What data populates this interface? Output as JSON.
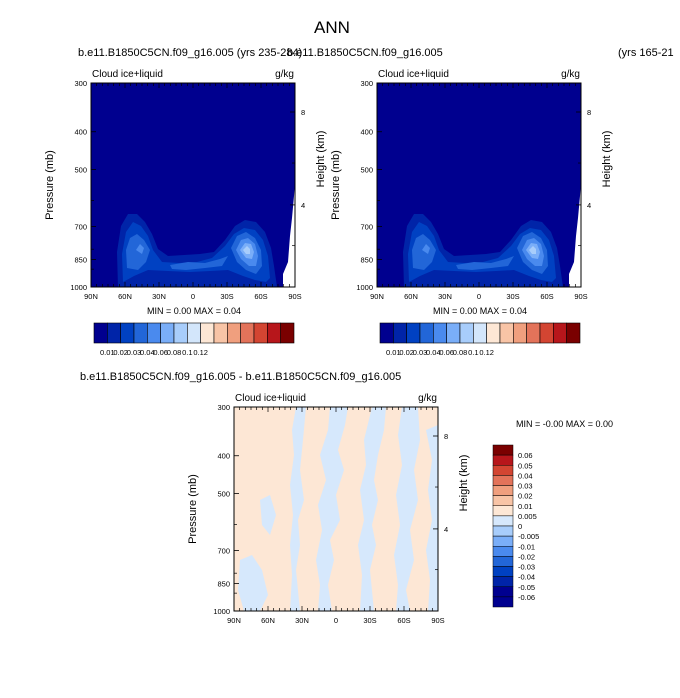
{
  "page": {
    "title": "ANN",
    "left_header": "b.e11.B1850C5CN.f09_g16.005 (yrs 235-284)",
    "middle_header": "b.e11.B1850C5CN.f09_g16.005",
    "right_header": "(yrs 165-21",
    "diff_header": "b.e11.B1850C5CN.f09_g16.005 - b.e11.B1850C5CN.f09_g16.005"
  },
  "colors": {
    "levels": [
      "#00008f",
      "#0024a8",
      "#0041c2",
      "#2266d8",
      "#4a8aee",
      "#7aaef8",
      "#a8cdfb",
      "#d3e6fb",
      "#fde7d5",
      "#f8c4a6",
      "#f09f7e",
      "#e3735a",
      "#d34532",
      "#b7161b",
      "#7a0000"
    ],
    "diff_levels": [
      "#00008f",
      "#0024a8",
      "#0041c2",
      "#2266d8",
      "#4a8aee",
      "#7aaef8",
      "#a8cdfb",
      "#d6e8fc",
      "#fde7d5",
      "#f8c4a6",
      "#f09f7e",
      "#e3735a",
      "#d34532",
      "#b7161b",
      "#7a0000"
    ]
  },
  "panels": [
    {
      "id": "top-left",
      "left_label": "Cloud ice+liquid",
      "right_label": "g/kg",
      "ylabel": "Pressure (mb)",
      "ylabel_right": "Height (km)",
      "stats": "MIN =  0.00   MAX =  0.04"
    },
    {
      "id": "top-right",
      "left_label": "Cloud ice+liquid",
      "right_label": "g/kg",
      "ylabel": "Pressure (mb)",
      "ylabel_right": "Height (km)",
      "stats": "MIN =  0.00   MAX =  0.04"
    },
    {
      "id": "diff",
      "left_label": "Cloud ice+liquid",
      "right_label": "g/kg",
      "ylabel": "Pressure (mb)",
      "ylabel_right": "Height (km)",
      "stats": "MIN =  -0.00   MAX =   0.00"
    }
  ],
  "chart_data": [
    {
      "type": "heatmap",
      "title": "Cloud ice+liquid",
      "units": "g/kg",
      "xlabel": "",
      "ylabel": "Pressure (mb)",
      "ylabel_right": "Height (km)",
      "x_ticks": [
        "90N",
        "60N",
        "30N",
        "0",
        "30S",
        "60S",
        "90S"
      ],
      "y_ticks": [
        "300",
        "400",
        "500",
        "700",
        "850",
        "1000"
      ],
      "y_ticks_right": [
        "8",
        "4"
      ],
      "ylim": [
        1000,
        300
      ],
      "min": 0.0,
      "max": 0.04,
      "colorbar_labels": [
        "0.01",
        "0.02",
        "0.03",
        "0.04",
        "0.06",
        "0.08",
        "0.1",
        "0.12"
      ]
    },
    {
      "type": "heatmap",
      "title": "Cloud ice+liquid",
      "units": "g/kg",
      "xlabel": "",
      "ylabel": "Pressure (mb)",
      "ylabel_right": "Height (km)",
      "x_ticks": [
        "90N",
        "60N",
        "30N",
        "0",
        "30S",
        "60S",
        "90S"
      ],
      "y_ticks": [
        "300",
        "400",
        "500",
        "700",
        "850",
        "1000"
      ],
      "y_ticks_right": [
        "8",
        "4"
      ],
      "ylim": [
        1000,
        300
      ],
      "min": 0.0,
      "max": 0.04,
      "colorbar_labels": [
        "0.01",
        "0.02",
        "0.03",
        "0.04",
        "0.06",
        "0.08",
        "0.1",
        "0.12"
      ]
    },
    {
      "type": "heatmap",
      "title": "Cloud ice+liquid",
      "units": "g/kg",
      "xlabel": "",
      "ylabel": "Pressure (mb)",
      "ylabel_right": "Height (km)",
      "x_ticks": [
        "90N",
        "60N",
        "30N",
        "0",
        "30S",
        "60S",
        "90S"
      ],
      "y_ticks": [
        "300",
        "400",
        "500",
        "700",
        "850",
        "1000"
      ],
      "y_ticks_right": [
        "8",
        "4"
      ],
      "ylim": [
        1000,
        300
      ],
      "min": -0.0,
      "max": 0.0,
      "colorbar_labels": [
        "0.06",
        "0.05",
        "0.04",
        "0.03",
        "0.02",
        "0.01",
        "0.005",
        "0",
        "-0.005",
        "-0.01",
        "-0.02",
        "-0.03",
        "-0.04",
        "-0.05",
        "-0.06"
      ]
    }
  ]
}
